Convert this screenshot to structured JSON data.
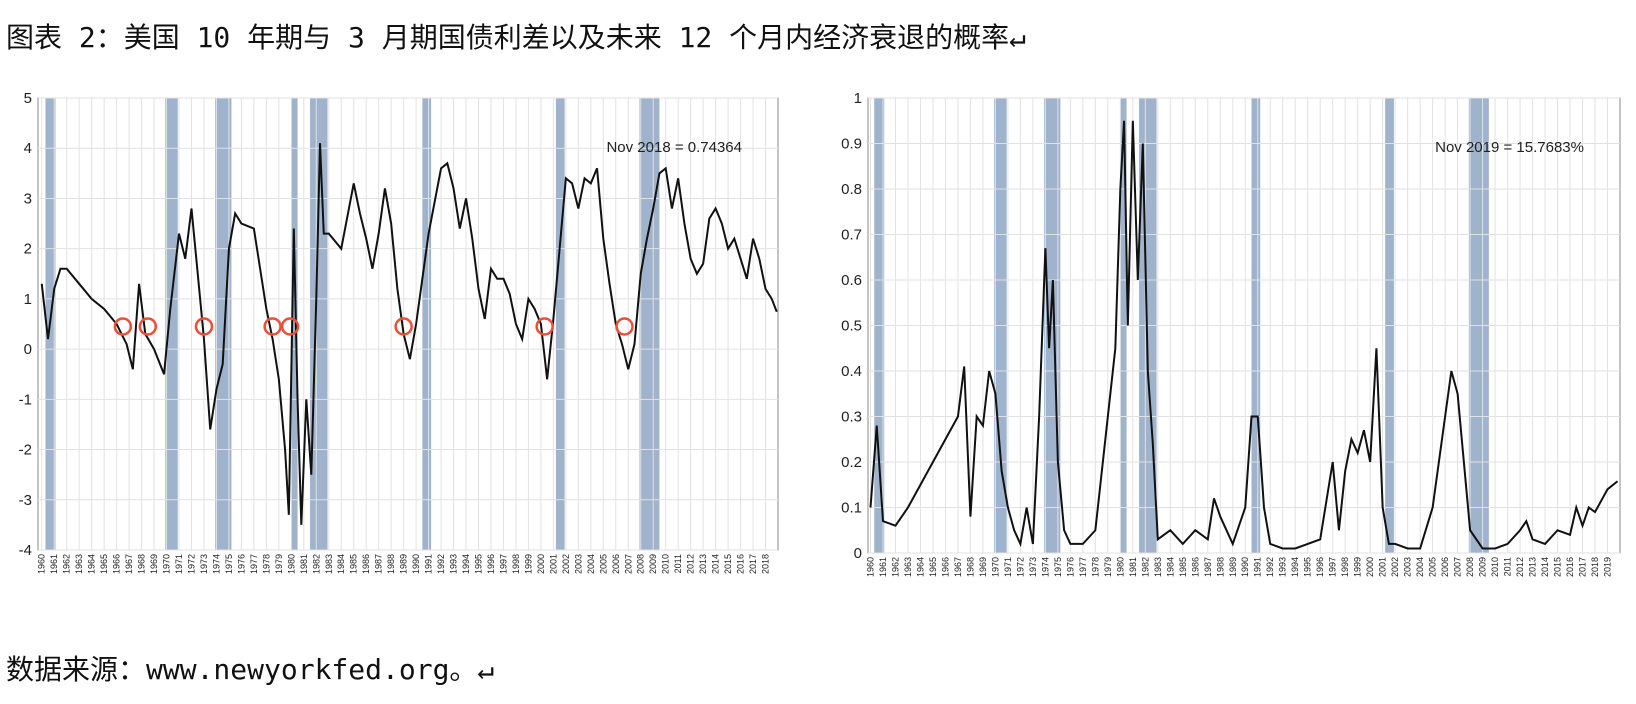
{
  "title": "图表 2：美国 10 年期与 3 月期国债利差以及未来 12 个月内经济衰退的概率↵",
  "source": "数据来源：www.newyorkfed.org。↵",
  "chart_data": [
    {
      "type": "line",
      "annotation": "Nov 2018 = 0.74364",
      "color": "#111111",
      "recession_color": "#9fb3cc",
      "xlim": [
        1959.7,
        2019
      ],
      "ylim": [
        -4,
        5
      ],
      "yticks": [
        -4,
        -3,
        -2,
        -1,
        0,
        1,
        2,
        3,
        4,
        5
      ],
      "xticks": [
        1960,
        1961,
        1962,
        1963,
        1964,
        1965,
        1966,
        1967,
        1968,
        1969,
        1970,
        1971,
        1972,
        1973,
        1974,
        1975,
        1976,
        1977,
        1978,
        1979,
        1980,
        1981,
        1982,
        1983,
        1984,
        1985,
        1986,
        1987,
        1988,
        1989,
        1990,
        1991,
        1992,
        1993,
        1994,
        1995,
        1996,
        1997,
        1998,
        1999,
        2000,
        2001,
        2002,
        2003,
        2004,
        2005,
        2006,
        2007,
        2008,
        2009,
        2010,
        2011,
        2012,
        2013,
        2014,
        2015,
        2016,
        2017,
        2018
      ],
      "grid": true,
      "recessions": [
        [
          1960.3,
          1961.1
        ],
        [
          1969.9,
          1970.9
        ],
        [
          1973.9,
          1975.2
        ],
        [
          1980.0,
          1980.5
        ],
        [
          1981.5,
          1982.9
        ],
        [
          1990.5,
          1991.2
        ],
        [
          2001.2,
          2001.9
        ],
        [
          2007.9,
          2009.5
        ]
      ],
      "markers": {
        "color": "#e8503a",
        "x": [
          1966.5,
          1968.5,
          1973.0,
          1978.5,
          1979.9,
          1989.0,
          2000.3,
          2006.7
        ],
        "y": [
          0.45,
          0.45,
          0.45,
          0.45,
          0.45,
          0.45,
          0.45,
          0.45
        ]
      },
      "x": [
        1960,
        1960.5,
        1961,
        1961.5,
        1962,
        1963,
        1964,
        1965,
        1966,
        1966.8,
        1967.3,
        1967.8,
        1968.3,
        1969,
        1969.8,
        1970.3,
        1971,
        1971.5,
        1972,
        1972.5,
        1973,
        1973.5,
        1974,
        1974.5,
        1975,
        1975.5,
        1976,
        1977,
        1977.5,
        1978,
        1978.5,
        1979,
        1979.5,
        1979.8,
        1980.2,
        1980.5,
        1980.8,
        1981.2,
        1981.6,
        1982,
        1982.3,
        1982.6,
        1983,
        1984,
        1985,
        1985.5,
        1986,
        1986.5,
        1987,
        1987.5,
        1988,
        1988.5,
        1989,
        1989.5,
        1990,
        1990.5,
        1991,
        1992,
        1992.5,
        1993,
        1993.5,
        1994,
        1994.5,
        1995,
        1995.5,
        1996,
        1996.5,
        1997,
        1997.5,
        1998,
        1998.5,
        1999,
        1999.5,
        2000,
        2000.5,
        2001,
        2001.5,
        2002,
        2002.5,
        2003,
        2003.5,
        2004,
        2004.5,
        2005,
        2005.5,
        2006,
        2006.5,
        2007,
        2007.5,
        2008,
        2008.5,
        2009,
        2009.5,
        2010,
        2010.5,
        2011,
        2011.5,
        2012,
        2012.5,
        2013,
        2013.5,
        2014,
        2014.5,
        2015,
        2015.5,
        2016,
        2016.5,
        2017,
        2017.5,
        2018,
        2018.5,
        2018.9
      ],
      "values": [
        1.3,
        0.2,
        1.2,
        1.6,
        1.6,
        1.3,
        1.0,
        0.8,
        0.5,
        0.1,
        -0.4,
        1.3,
        0.3,
        0,
        -0.5,
        0.8,
        2.3,
        1.8,
        2.8,
        1.5,
        0.2,
        -1.6,
        -0.8,
        -0.3,
        2.0,
        2.7,
        2.5,
        2.4,
        1.6,
        0.8,
        0.2,
        -0.6,
        -2.0,
        -3.3,
        2.4,
        -1.0,
        -3.5,
        -1.0,
        -2.5,
        1.0,
        4.1,
        2.3,
        2.3,
        2.0,
        3.3,
        2.7,
        2.2,
        1.6,
        2.3,
        3.2,
        2.5,
        1.2,
        0.3,
        -0.2,
        0.5,
        1.4,
        2.3,
        3.6,
        3.7,
        3.2,
        2.4,
        3.0,
        2.2,
        1.2,
        0.6,
        1.6,
        1.4,
        1.4,
        1.1,
        0.5,
        0.2,
        1.0,
        0.8,
        0.5,
        -0.6,
        0.6,
        2.0,
        3.4,
        3.3,
        2.8,
        3.4,
        3.3,
        3.6,
        2.2,
        1.3,
        0.5,
        0.1,
        -0.4,
        0.1,
        1.5,
        2.2,
        2.8,
        3.5,
        3.6,
        2.8,
        3.4,
        2.5,
        1.8,
        1.5,
        1.7,
        2.6,
        2.8,
        2.5,
        2.0,
        2.2,
        1.8,
        1.4,
        2.2,
        1.8,
        1.2,
        1.0,
        0.74364
      ]
    },
    {
      "type": "line",
      "annotation": "Nov 2019 = 15.7683%",
      "color": "#111111",
      "recession_color": "#9fb3cc",
      "xlim": [
        1959.8,
        2020
      ],
      "ylim": [
        0,
        1
      ],
      "yticks": [
        0,
        0.1,
        0.2,
        0.3,
        0.4,
        0.5,
        0.6,
        0.7,
        0.8,
        0.9,
        1
      ],
      "xticks": [
        1960,
        1961,
        1962,
        1963,
        1964,
        1965,
        1966,
        1967,
        1968,
        1969,
        1970,
        1971,
        1972,
        1973,
        1974,
        1975,
        1976,
        1977,
        1978,
        1979,
        1980,
        1981,
        1982,
        1983,
        1984,
        1985,
        1986,
        1987,
        1988,
        1989,
        1990,
        1991,
        1992,
        1993,
        1994,
        1995,
        1996,
        1997,
        1998,
        1999,
        2000,
        2001,
        2002,
        2003,
        2004,
        2005,
        2006,
        2007,
        2008,
        2009,
        2010,
        2011,
        2012,
        2013,
        2014,
        2015,
        2016,
        2017,
        2018,
        2019
      ],
      "grid": true,
      "recessions": [
        [
          1960.3,
          1961.1
        ],
        [
          1969.9,
          1970.9
        ],
        [
          1973.9,
          1975.2
        ],
        [
          1980.0,
          1980.5
        ],
        [
          1981.5,
          1982.9
        ],
        [
          1990.5,
          1991.2
        ],
        [
          2001.2,
          2001.9
        ],
        [
          2007.9,
          2009.5
        ]
      ],
      "x": [
        1960,
        1960.5,
        1961,
        1962,
        1963,
        1964,
        1965,
        1966,
        1967,
        1967.5,
        1968,
        1968.5,
        1969,
        1969.5,
        1970,
        1970.5,
        1971,
        1971.5,
        1972,
        1972.5,
        1973,
        1973.5,
        1974,
        1974.3,
        1974.6,
        1975,
        1975.5,
        1976,
        1977,
        1978,
        1979,
        1979.6,
        1980,
        1980.3,
        1980.6,
        1981,
        1981.4,
        1981.8,
        1982.2,
        1982.6,
        1983,
        1984,
        1985,
        1986,
        1987,
        1987.5,
        1988,
        1989,
        1990,
        1990.5,
        1991,
        1991.5,
        1992,
        1993,
        1994,
        1995,
        1996,
        1997,
        1997.5,
        1998,
        1998.5,
        1999,
        1999.5,
        2000,
        2000.5,
        2001,
        2001.5,
        2002,
        2003,
        2004,
        2005,
        2006,
        2006.5,
        2007,
        2007.5,
        2008,
        2009,
        2010,
        2011,
        2012,
        2012.5,
        2013,
        2014,
        2015,
        2016,
        2016.5,
        2017,
        2017.5,
        2018,
        2019,
        2019.8
      ],
      "values": [
        0.1,
        0.28,
        0.07,
        0.06,
        0.1,
        0.15,
        0.2,
        0.25,
        0.3,
        0.41,
        0.08,
        0.3,
        0.28,
        0.4,
        0.35,
        0.18,
        0.1,
        0.05,
        0.02,
        0.1,
        0.02,
        0.3,
        0.67,
        0.45,
        0.6,
        0.2,
        0.05,
        0.02,
        0.02,
        0.05,
        0.3,
        0.45,
        0.8,
        0.95,
        0.5,
        0.95,
        0.6,
        0.9,
        0.4,
        0.24,
        0.03,
        0.05,
        0.02,
        0.05,
        0.03,
        0.12,
        0.08,
        0.02,
        0.1,
        0.3,
        0.3,
        0.1,
        0.02,
        0.01,
        0.01,
        0.02,
        0.03,
        0.2,
        0.05,
        0.18,
        0.25,
        0.22,
        0.27,
        0.2,
        0.45,
        0.1,
        0.02,
        0.02,
        0.01,
        0.01,
        0.1,
        0.3,
        0.4,
        0.35,
        0.2,
        0.05,
        0.01,
        0.01,
        0.02,
        0.05,
        0.07,
        0.03,
        0.02,
        0.05,
        0.04,
        0.1,
        0.06,
        0.1,
        0.09,
        0.14,
        0.157683
      ]
    }
  ]
}
